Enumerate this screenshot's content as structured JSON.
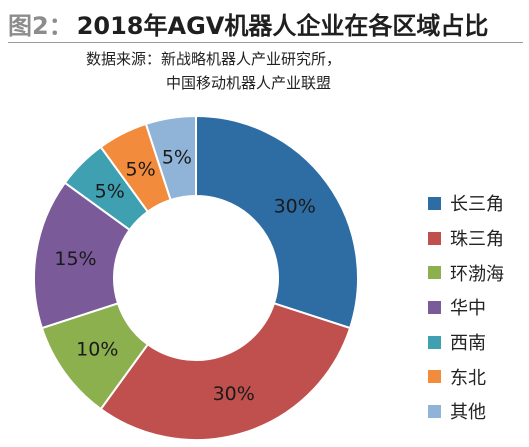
{
  "header": {
    "figure_label": "图2：",
    "title": "2018年AGV机器人企业在各区域占比",
    "source_line1": "数据来源：新战略机器人产业研究所，",
    "source_line2": "中国移动机器人产业联盟"
  },
  "chart_data": {
    "type": "pie",
    "style": "donut",
    "start": "12 o'clock, clockwise",
    "legend_position": "right",
    "series": [
      {
        "name": "长三角",
        "value": 30,
        "label": "30%",
        "color": "#2e6da4"
      },
      {
        "name": "珠三角",
        "value": 30,
        "label": "30%",
        "color": "#c0504d"
      },
      {
        "name": "环渤海",
        "value": 10,
        "label": "10%",
        "color": "#8bb04d"
      },
      {
        "name": "华中",
        "value": 15,
        "label": "15%",
        "color": "#7a5a99"
      },
      {
        "name": "西南",
        "value": 5,
        "label": "5%",
        "color": "#3fa0b2"
      },
      {
        "name": "东北",
        "value": 5,
        "label": "5%",
        "color": "#f28c3c"
      },
      {
        "name": "其他",
        "value": 5,
        "label": "5%",
        "color": "#8fb4d8"
      }
    ]
  }
}
